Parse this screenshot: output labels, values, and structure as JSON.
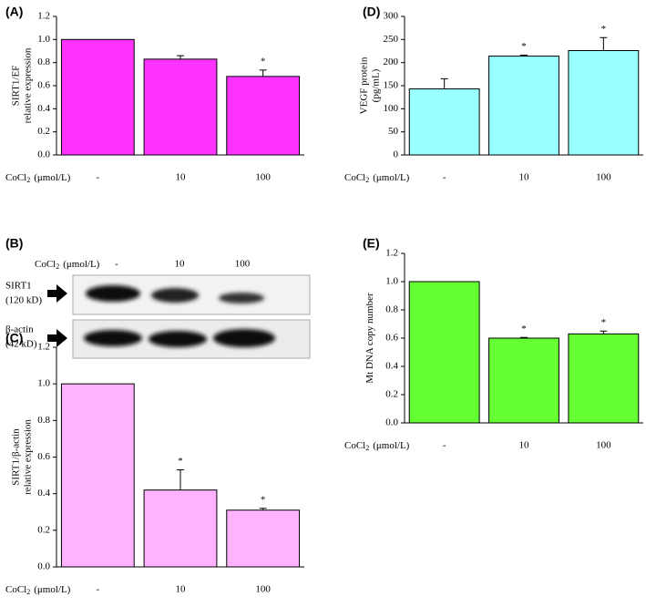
{
  "chart_data": [
    {
      "type": "bar",
      "panel": "(A)",
      "y_label": [
        "SIRT1/EF",
        "relative expression"
      ],
      "x_label": "CoCl",
      "x_label_sub": "2",
      "x_label_unit": "(μmol/L)",
      "categories": [
        "-",
        "10",
        "100"
      ],
      "values": [
        1.0,
        0.83,
        0.68
      ],
      "errors": [
        null,
        0.03,
        0.055
      ],
      "annotations": [
        null,
        null,
        "*"
      ],
      "color": "#ff33ff",
      "ylim": [
        0,
        1.2
      ],
      "yticks": [
        {
          "value": 0,
          "label": "0.0"
        },
        {
          "value": 0.2,
          "label": "0.2"
        },
        {
          "value": 0.4,
          "label": "0.4"
        },
        {
          "value": 0.6,
          "label": "0.6"
        },
        {
          "value": 0.8,
          "label": "0.8"
        },
        {
          "value": 1.0,
          "label": "1.0"
        },
        {
          "value": 1.2,
          "label": "1.2"
        }
      ]
    },
    {
      "type": "bar",
      "panel": "(D)",
      "y_label": [
        "VEGF protein",
        "(pg/mL)"
      ],
      "x_label": "CoCl",
      "x_label_sub": "2",
      "x_label_unit": "(μmol/L)",
      "categories": [
        "-",
        "10",
        "100"
      ],
      "values": [
        143,
        214,
        226
      ],
      "errors": [
        22,
        2,
        28
      ],
      "annotations": [
        null,
        "*",
        "*"
      ],
      "color": "#99ffff",
      "ylim": [
        0,
        300
      ],
      "yticks": [
        0,
        50,
        100,
        150,
        200,
        250,
        300
      ]
    },
    {
      "type": "bar",
      "panel": "(C)",
      "y_label": [
        "SIRT1/β-actin",
        "relative expression"
      ],
      "x_label": "CoCl",
      "x_label_sub": "2",
      "x_label_unit": "(μmol/L)",
      "categories": [
        "-",
        "10",
        "100"
      ],
      "values": [
        1.0,
        0.42,
        0.31
      ],
      "errors": [
        null,
        0.11,
        0.01
      ],
      "annotations": [
        null,
        "*",
        "*"
      ],
      "color": "#ffb3ff",
      "ylim": [
        0,
        1.2
      ],
      "yticks": [
        {
          "value": 0,
          "label": "0.0"
        },
        {
          "value": 0.2,
          "label": "0.2"
        },
        {
          "value": 0.4,
          "label": "0.4"
        },
        {
          "value": 0.6,
          "label": "0.6"
        },
        {
          "value": 0.8,
          "label": "0.8"
        },
        {
          "value": 1.0,
          "label": "1.0"
        },
        {
          "value": 1.2,
          "label": "1.2"
        }
      ]
    },
    {
      "type": "bar",
      "panel": "(E)",
      "y_label": [
        "Mt DNA copy number"
      ],
      "x_label": "CoCl",
      "x_label_sub": "2",
      "x_label_unit": "(μmol/L)",
      "categories": [
        "-",
        "10",
        "100"
      ],
      "values": [
        1.0,
        0.6,
        0.63
      ],
      "errors": [
        null,
        0.005,
        0.02
      ],
      "annotations": [
        null,
        "*",
        "*"
      ],
      "color": "#66ff33",
      "ylim": [
        0,
        1.2
      ],
      "yticks": [
        {
          "value": 0,
          "label": "0.0"
        },
        {
          "value": 0.2,
          "label": "0.2"
        },
        {
          "value": 0.4,
          "label": "0.4"
        },
        {
          "value": 0.6,
          "label": "0.6"
        },
        {
          "value": 0.8,
          "label": "0.8"
        },
        {
          "value": 1.0,
          "label": "1.0"
        },
        {
          "value": 1.2,
          "label": "1.2"
        }
      ]
    }
  ],
  "blot": {
    "panel": "(B)",
    "x_label": "CoCl",
    "x_label_sub": "2",
    "x_label_unit": "(μmol/L)",
    "lanes": [
      "-",
      "10",
      "100"
    ],
    "rows": [
      [
        "SIRT1",
        "(120 kD)"
      ],
      [
        "β-actin",
        "(42 kD)"
      ]
    ]
  }
}
